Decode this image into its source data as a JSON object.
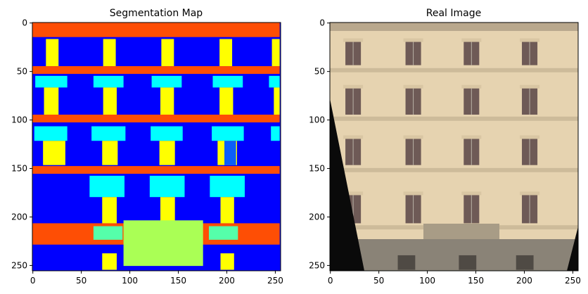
{
  "figure": {
    "colors": {
      "background": "#0000ff",
      "facade": "#fe4e05",
      "window": "#ffff00",
      "sill": "#00ffff",
      "door": "#0b5ff9",
      "balcony": "#55ffaa",
      "shop": "#aaff55",
      "photo_wall": "#e6d3b0",
      "photo_window": "#6e5a56",
      "photo_dark": "#0a0a0a",
      "photo_base": "#8a8377"
    }
  },
  "chart_data": [
    {
      "type": "heatmap",
      "title": "Segmentation Map",
      "xlim": [
        0,
        255
      ],
      "ylim": [
        255,
        0
      ],
      "xticks": [
        0,
        50,
        100,
        150,
        200,
        250
      ],
      "yticks": [
        0,
        50,
        100,
        150,
        200,
        250
      ],
      "regions": [
        {
          "label": "facade",
          "x0": 0,
          "x1": 255,
          "y0": 0,
          "y1": 15
        },
        {
          "label": "facade",
          "x0": 0,
          "x1": 255,
          "y0": 45,
          "y1": 53
        },
        {
          "label": "facade",
          "x0": 0,
          "x1": 255,
          "y0": 95,
          "y1": 103
        },
        {
          "label": "facade",
          "x0": 0,
          "x1": 255,
          "y0": 148,
          "y1": 156
        },
        {
          "label": "facade",
          "x0": 0,
          "x1": 255,
          "y0": 207,
          "y1": 229
        },
        {
          "label": "sill",
          "x0": 3,
          "x1": 36,
          "y0": 55,
          "y1": 67
        },
        {
          "label": "sill",
          "x0": 63,
          "x1": 94,
          "y0": 55,
          "y1": 67
        },
        {
          "label": "sill",
          "x0": 123,
          "x1": 154,
          "y0": 55,
          "y1": 67
        },
        {
          "label": "sill",
          "x0": 186,
          "x1": 217,
          "y0": 55,
          "y1": 67
        },
        {
          "label": "sill",
          "x0": 244,
          "x1": 255,
          "y0": 55,
          "y1": 67
        },
        {
          "label": "sill",
          "x0": 2,
          "x1": 36,
          "y0": 107,
          "y1": 122
        },
        {
          "label": "sill",
          "x0": 61,
          "x1": 96,
          "y0": 107,
          "y1": 122
        },
        {
          "label": "sill",
          "x0": 122,
          "x1": 155,
          "y0": 107,
          "y1": 122
        },
        {
          "label": "sill",
          "x0": 185,
          "x1": 218,
          "y0": 107,
          "y1": 122
        },
        {
          "label": "sill",
          "x0": 246,
          "x1": 255,
          "y0": 107,
          "y1": 122
        },
        {
          "label": "sill",
          "x0": 59,
          "x1": 95,
          "y0": 158,
          "y1": 180
        },
        {
          "label": "sill",
          "x0": 121,
          "x1": 157,
          "y0": 158,
          "y1": 180
        },
        {
          "label": "sill",
          "x0": 183,
          "x1": 219,
          "y0": 158,
          "y1": 180
        },
        {
          "label": "window",
          "x0": 14,
          "x1": 27,
          "y0": 17,
          "y1": 45
        },
        {
          "label": "window",
          "x0": 73,
          "x1": 86,
          "y0": 17,
          "y1": 45
        },
        {
          "label": "window",
          "x0": 133,
          "x1": 146,
          "y0": 17,
          "y1": 45
        },
        {
          "label": "window",
          "x0": 193,
          "x1": 206,
          "y0": 17,
          "y1": 45
        },
        {
          "label": "window",
          "x0": 247,
          "x1": 255,
          "y0": 17,
          "y1": 45
        },
        {
          "label": "window",
          "x0": 12,
          "x1": 27,
          "y0": 67,
          "y1": 95
        },
        {
          "label": "window",
          "x0": 73,
          "x1": 87,
          "y0": 67,
          "y1": 95
        },
        {
          "label": "window",
          "x0": 132,
          "x1": 146,
          "y0": 67,
          "y1": 95
        },
        {
          "label": "window",
          "x0": 193,
          "x1": 207,
          "y0": 67,
          "y1": 95
        },
        {
          "label": "window",
          "x0": 249,
          "x1": 255,
          "y0": 67,
          "y1": 95
        },
        {
          "label": "window",
          "x0": 11,
          "x1": 34,
          "y0": 122,
          "y1": 147
        },
        {
          "label": "window",
          "x0": 72,
          "x1": 88,
          "y0": 122,
          "y1": 147
        },
        {
          "label": "window",
          "x0": 131,
          "x1": 147,
          "y0": 122,
          "y1": 147
        },
        {
          "label": "window",
          "x0": 191,
          "x1": 211,
          "y0": 122,
          "y1": 147
        },
        {
          "label": "window",
          "x0": 72,
          "x1": 87,
          "y0": 180,
          "y1": 207
        },
        {
          "label": "window",
          "x0": 132,
          "x1": 147,
          "y0": 180,
          "y1": 207
        },
        {
          "label": "window",
          "x0": 194,
          "x1": 208,
          "y0": 180,
          "y1": 207
        },
        {
          "label": "window",
          "x0": 72,
          "x1": 87,
          "y0": 238,
          "y1": 255
        },
        {
          "label": "window",
          "x0": 194,
          "x1": 208,
          "y0": 238,
          "y1": 255
        },
        {
          "label": "door",
          "x0": 198,
          "x1": 210,
          "y0": 122,
          "y1": 147
        },
        {
          "label": "balcony",
          "x0": 63,
          "x1": 93,
          "y0": 210,
          "y1": 224
        },
        {
          "label": "balcony",
          "x0": 182,
          "x1": 212,
          "y0": 210,
          "y1": 224
        },
        {
          "label": "shop",
          "x0": 94,
          "x1": 176,
          "y0": 204,
          "y1": 251
        }
      ]
    },
    {
      "type": "heatmap",
      "title": "Real Image",
      "xlim": [
        0,
        255
      ],
      "ylim": [
        255,
        0
      ],
      "xticks": [
        0,
        50,
        100,
        150,
        200,
        250
      ],
      "yticks": [
        0,
        50,
        100,
        150,
        200,
        250
      ],
      "regions": []
    }
  ]
}
